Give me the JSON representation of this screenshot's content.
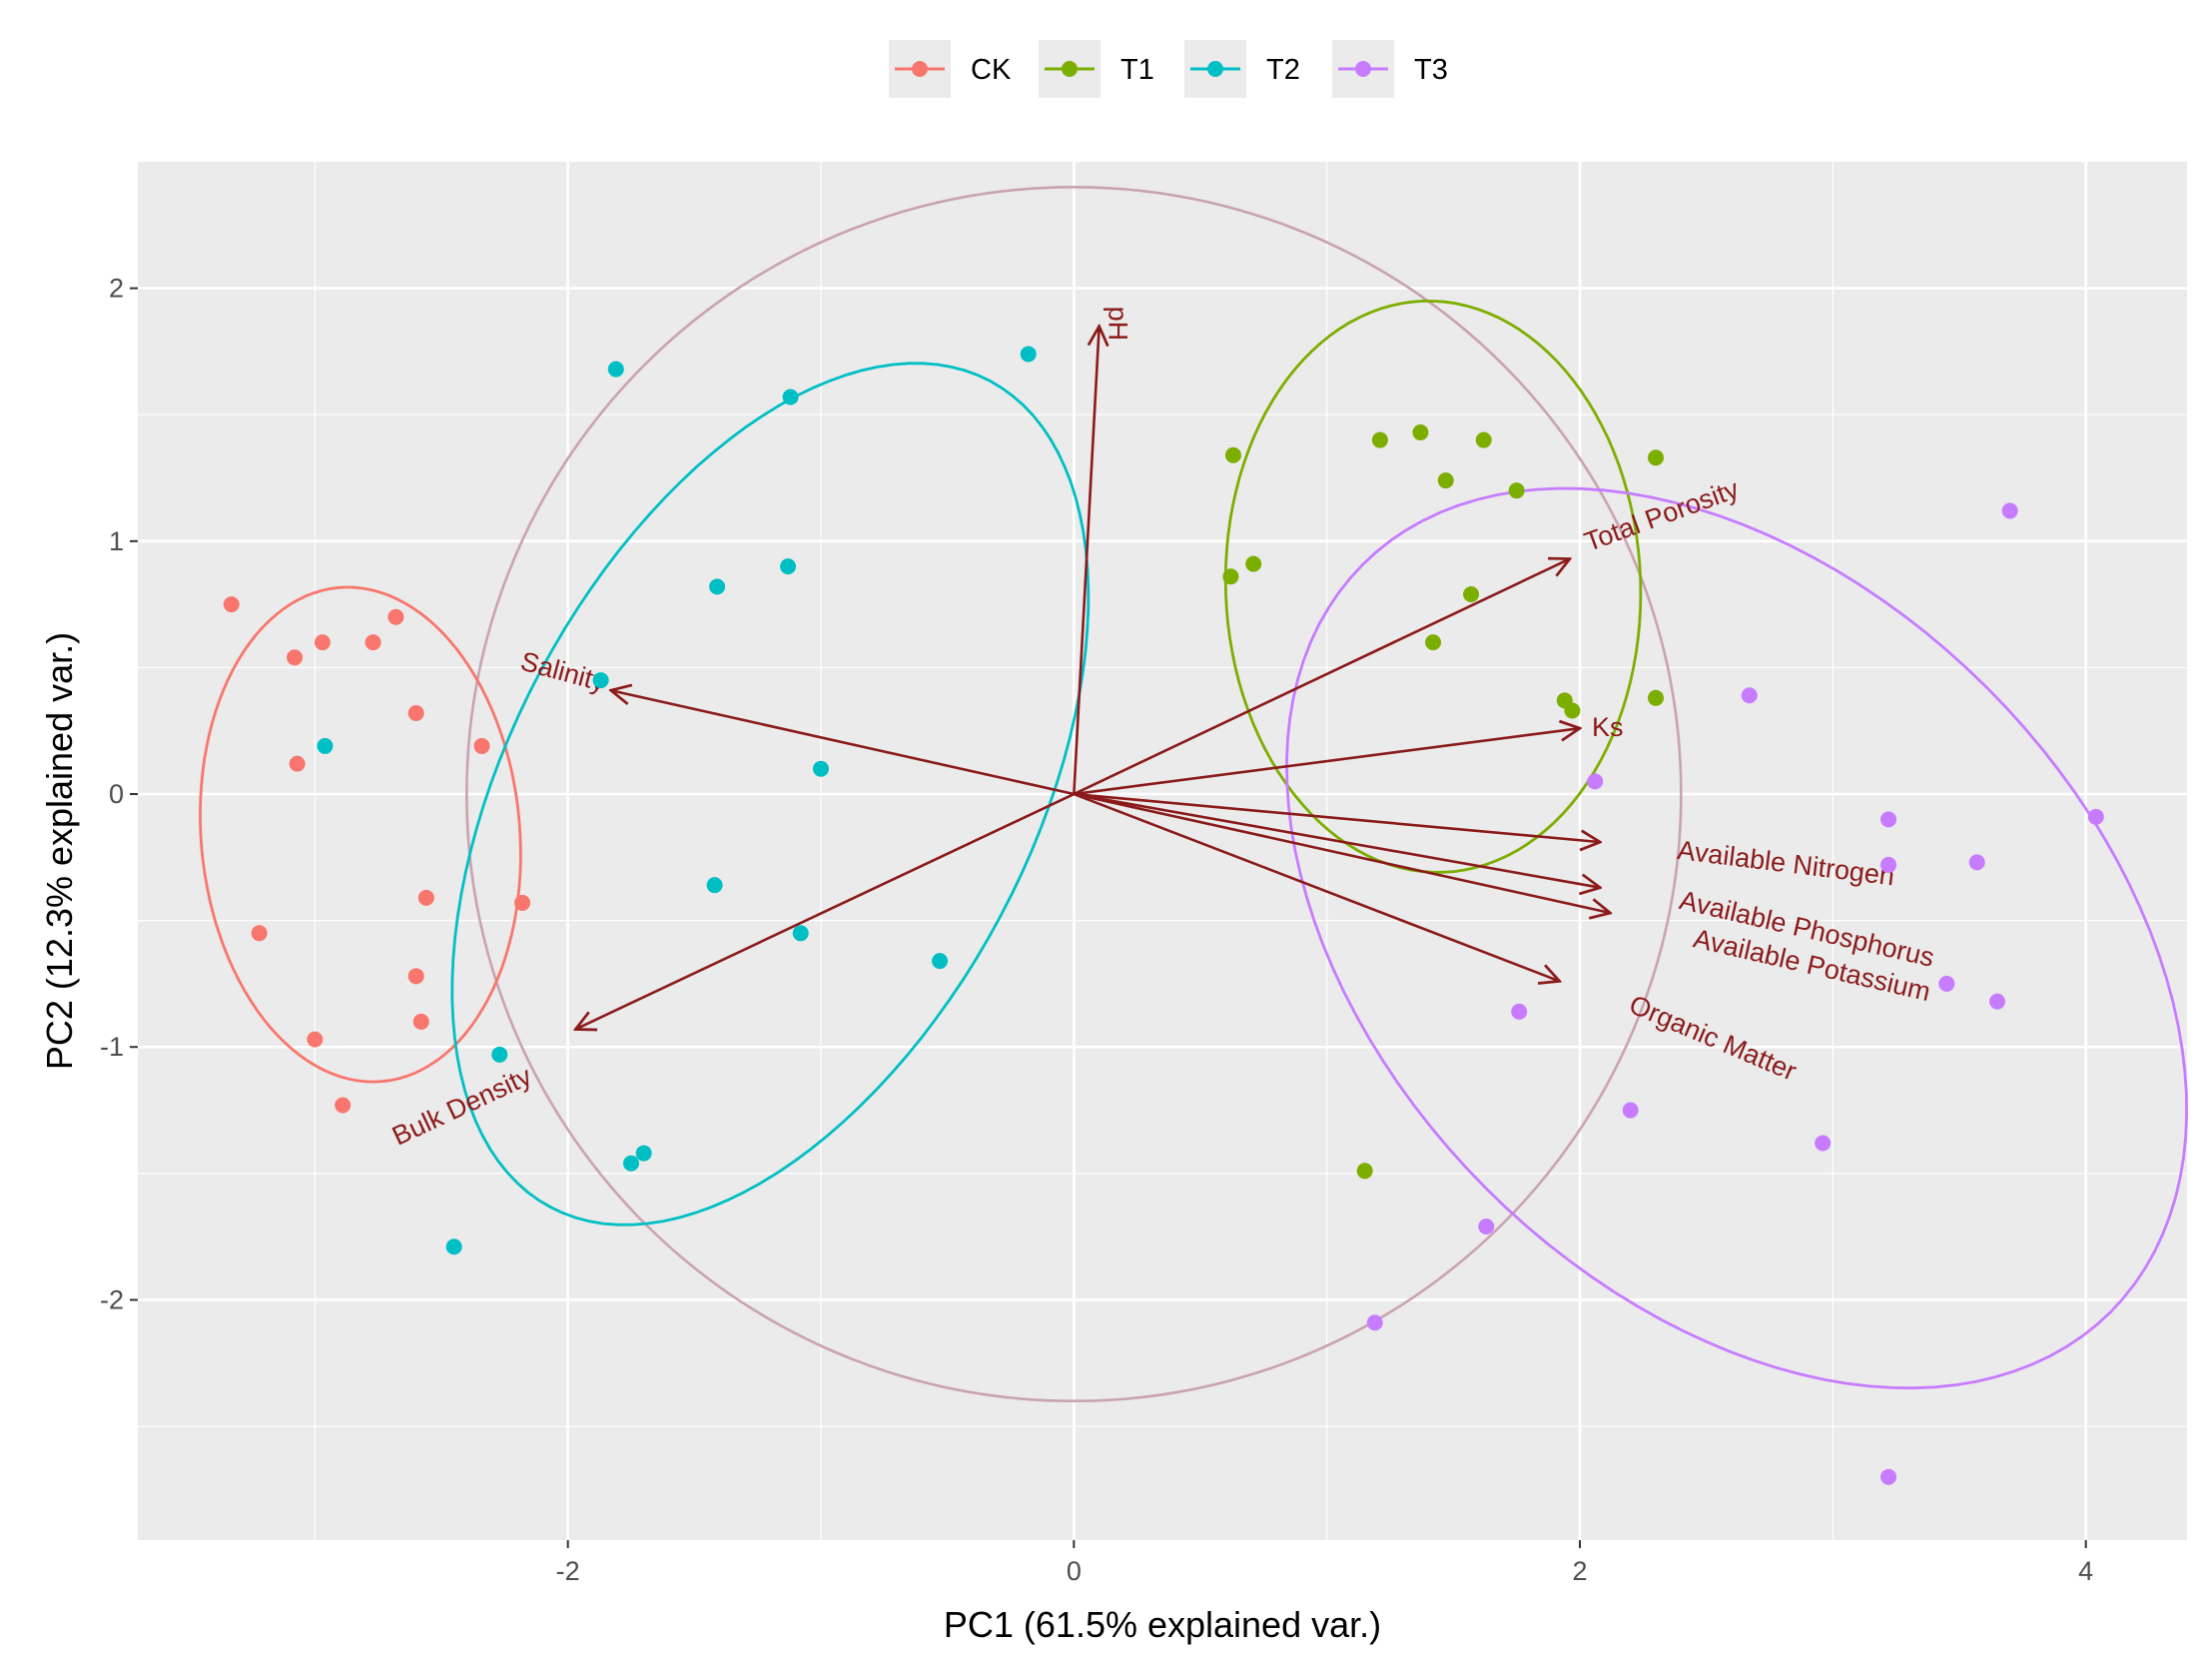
{
  "chart_data": {
    "type": "scatter",
    "title": "",
    "xlabel": "PC1 (61.5% explained var.)",
    "ylabel": "PC2 (12.3% explained var.)",
    "xlim": [
      -3.7,
      4.4
    ],
    "ylim": [
      -2.95,
      2.5
    ],
    "x_ticks": [
      -2,
      0,
      2,
      4
    ],
    "y_ticks": [
      -2,
      -1,
      0,
      1,
      2
    ],
    "x_tick_labels": [
      "-2",
      "0",
      "2",
      "4"
    ],
    "y_tick_labels": [
      "-2",
      "-1",
      "0",
      "1",
      "2"
    ],
    "grid": true,
    "legend_position": "top",
    "series": [
      {
        "name": "CK",
        "color": "#F8766D",
        "points": [
          [
            -3.33,
            0.75
          ],
          [
            -3.08,
            0.54
          ],
          [
            -2.97,
            0.6
          ],
          [
            -2.77,
            0.6
          ],
          [
            -2.68,
            0.7
          ],
          [
            -2.6,
            0.32
          ],
          [
            -3.07,
            0.12
          ],
          [
            -2.34,
            0.19
          ],
          [
            -2.18,
            -0.43
          ],
          [
            -2.56,
            -0.41
          ],
          [
            -3.22,
            -0.55
          ],
          [
            -2.6,
            -0.72
          ],
          [
            -2.58,
            -0.9
          ],
          [
            -3.0,
            -0.97
          ],
          [
            -2.89,
            -1.23
          ]
        ],
        "ellipse": {
          "cx": -2.82,
          "cy": -0.16,
          "rx": 0.98,
          "ry": 0.63,
          "angle_deg": 95
        }
      },
      {
        "name": "T1",
        "color": "#7CAE00",
        "points": [
          [
            0.63,
            1.34
          ],
          [
            1.21,
            1.4
          ],
          [
            1.37,
            1.43
          ],
          [
            1.62,
            1.4
          ],
          [
            1.47,
            1.24
          ],
          [
            1.75,
            1.2
          ],
          [
            2.3,
            1.33
          ],
          [
            0.71,
            0.91
          ],
          [
            0.62,
            0.86
          ],
          [
            1.57,
            0.79
          ],
          [
            1.42,
            0.6
          ],
          [
            1.94,
            0.37
          ],
          [
            1.97,
            0.33
          ],
          [
            2.3,
            0.38
          ],
          [
            1.15,
            -1.49
          ]
        ],
        "ellipse": {
          "cx": 1.42,
          "cy": 0.82,
          "rx": 1.13,
          "ry": 0.82,
          "angle_deg": 92
        }
      },
      {
        "name": "T2",
        "color": "#00BFC4",
        "points": [
          [
            -1.81,
            1.68
          ],
          [
            -0.18,
            1.74
          ],
          [
            -1.12,
            1.57
          ],
          [
            -1.13,
            0.9
          ],
          [
            -1.41,
            0.82
          ],
          [
            -1.87,
            0.45
          ],
          [
            -2.96,
            0.19
          ],
          [
            -1.0,
            0.1
          ],
          [
            -1.42,
            -0.36
          ],
          [
            -1.08,
            -0.55
          ],
          [
            -0.53,
            -0.66
          ],
          [
            -2.27,
            -1.03
          ],
          [
            -1.75,
            -1.46
          ],
          [
            -1.7,
            -1.42
          ],
          [
            -2.45,
            -1.79
          ]
        ],
        "ellipse": {
          "cx": -1.2,
          "cy": 0.0,
          "rx": 1.85,
          "ry": 1.03,
          "angle_deg": 62
        }
      },
      {
        "name": "T3",
        "color": "#C77CFF",
        "points": [
          [
            3.7,
            1.12
          ],
          [
            2.67,
            0.39
          ],
          [
            2.06,
            0.05
          ],
          [
            3.22,
            -0.1
          ],
          [
            4.04,
            -0.09
          ],
          [
            3.22,
            -0.28
          ],
          [
            3.57,
            -0.27
          ],
          [
            3.45,
            -0.75
          ],
          [
            3.65,
            -0.82
          ],
          [
            1.76,
            -0.86
          ],
          [
            2.2,
            -1.25
          ],
          [
            2.96,
            -1.38
          ],
          [
            1.63,
            -1.71
          ],
          [
            1.19,
            -2.09
          ],
          [
            3.22,
            -2.7
          ]
        ],
        "ellipse": {
          "cx": 2.62,
          "cy": -0.57,
          "rx": 2.09,
          "ry": 1.4,
          "angle_deg": 135
        }
      }
    ],
    "circle": {
      "cx": 0,
      "cy": 0,
      "r": 2.4,
      "color": "#C9A3B0"
    },
    "loadings": [
      {
        "name": "pH",
        "x": 0.1,
        "y": 1.85
      },
      {
        "name": "Total Porosity",
        "x": 1.96,
        "y": 0.93
      },
      {
        "name": "Ks",
        "x": 2.0,
        "y": 0.26
      },
      {
        "name": "Salinity",
        "x": -1.83,
        "y": 0.41
      },
      {
        "name": "Bulk Density",
        "x": -1.97,
        "y": -0.93
      },
      {
        "name": "Available Nitrogen",
        "x": 2.08,
        "y": -0.19
      },
      {
        "name": "Available Phosphorus",
        "x": 2.08,
        "y": -0.37
      },
      {
        "name": "Available Potassium",
        "x": 2.12,
        "y": -0.47
      },
      {
        "name": "Organic Matter",
        "x": 1.92,
        "y": -0.74
      }
    ],
    "loading_color": "#8B1A1A"
  }
}
